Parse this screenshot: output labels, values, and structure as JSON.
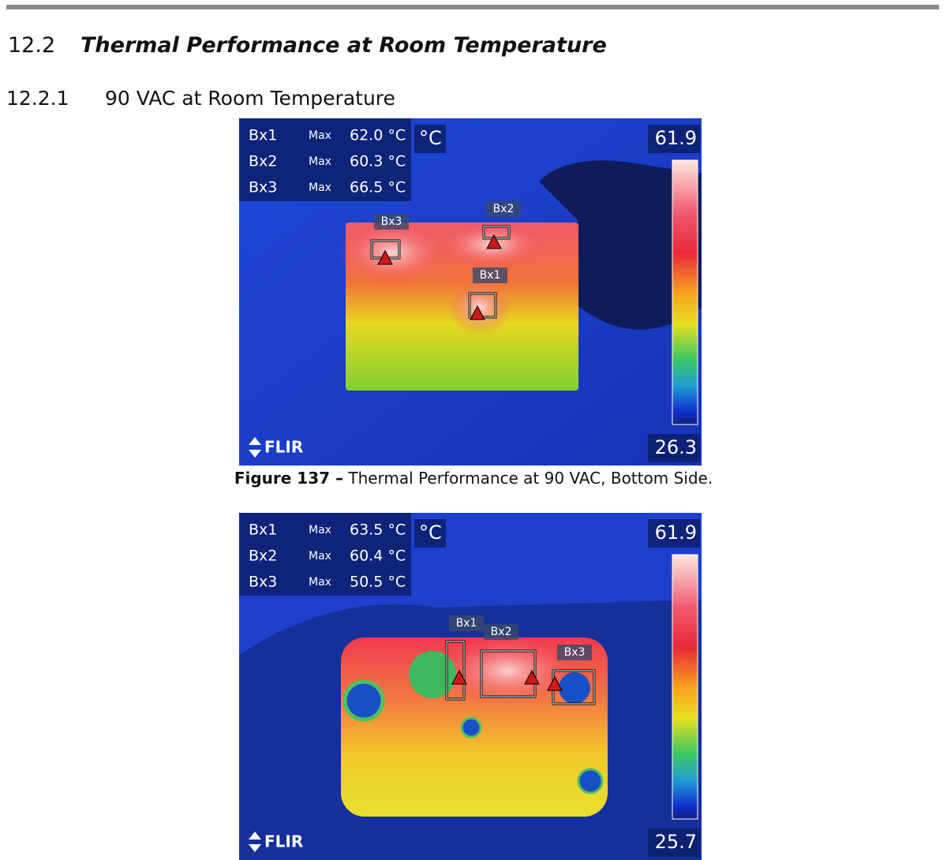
{
  "header": {
    "section_number": "12.2",
    "section_title": "Thermal Performance at Room Temperature",
    "subsection_number": "12.2.1",
    "subsection_title": "90 VAC at Room Temperature"
  },
  "figures": [
    {
      "measurements": [
        {
          "box": "Bx1",
          "stat": "Max",
          "reading": "62.0 °C"
        },
        {
          "box": "Bx2",
          "stat": "Max",
          "reading": "60.3 °C"
        },
        {
          "box": "Bx3",
          "stat": "Max",
          "reading": "66.5 °C"
        }
      ],
      "unit": "°C",
      "scale_max": "61.9",
      "scale_min": "26.3",
      "brand": "FLIR",
      "markers": [
        "Bx3",
        "Bx2",
        "Bx1"
      ],
      "caption_label": "Figure 137 –",
      "caption_text": "Thermal Performance at 90 VAC, Bottom Side."
    },
    {
      "measurements": [
        {
          "box": "Bx1",
          "stat": "Max",
          "reading": "63.5 °C"
        },
        {
          "box": "Bx2",
          "stat": "Max",
          "reading": "60.4 °C"
        },
        {
          "box": "Bx3",
          "stat": "Max",
          "reading": "50.5 °C"
        }
      ],
      "unit": "°C",
      "scale_max": "61.9",
      "scale_min": "25.7",
      "brand": "FLIR",
      "markers": [
        "Bx1",
        "Bx2",
        "Bx3"
      ]
    }
  ]
}
